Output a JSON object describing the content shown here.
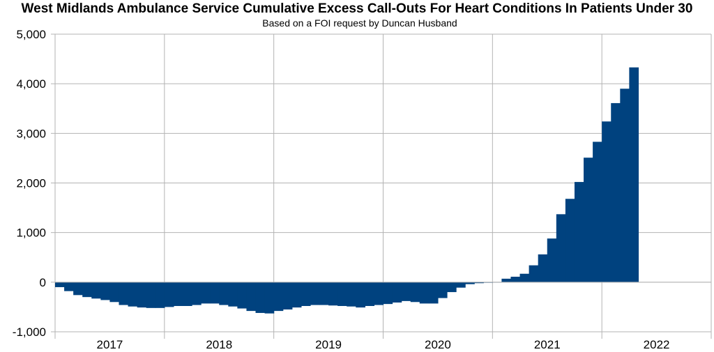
{
  "chart_data": {
    "type": "bar",
    "title": "West Midlands Ambulance Service Cumulative Excess Call-Outs For Heart Conditions In Patients Under 30",
    "subtitle": "Based on a FOI request by Duncan Husband",
    "xlabel": "",
    "ylabel": "",
    "x_tick_labels": [
      "2017",
      "2018",
      "2019",
      "2020",
      "2021",
      "2022"
    ],
    "y_tick_labels": [
      "5,000",
      "4,000",
      "3,000",
      "2,000",
      "1,000",
      "0",
      "-1,000"
    ],
    "ylim": [
      -1000,
      5000
    ],
    "xlim_months": 72,
    "grid": true,
    "legend": "none",
    "bar_color": "#00427f",
    "series": [
      {
        "values": [
          -100,
          -180,
          -260,
          -300,
          -330,
          -360,
          -400,
          -460,
          -490,
          -510,
          -520,
          -520,
          -500,
          -480,
          -480,
          -460,
          -430,
          -430,
          -460,
          -490,
          -530,
          -580,
          -620,
          -630,
          -580,
          -550,
          -510,
          -480,
          -460,
          -460,
          -470,
          -480,
          -490,
          -510,
          -480,
          -460,
          -440,
          -410,
          -380,
          -400,
          -430,
          -430,
          -320,
          -200,
          -110,
          -40,
          -20,
          -5,
          5,
          70,
          110,
          170,
          340,
          560,
          880,
          1370,
          1680,
          2020,
          2510,
          2830,
          3240,
          3610,
          3900,
          4330
        ]
      }
    ]
  }
}
